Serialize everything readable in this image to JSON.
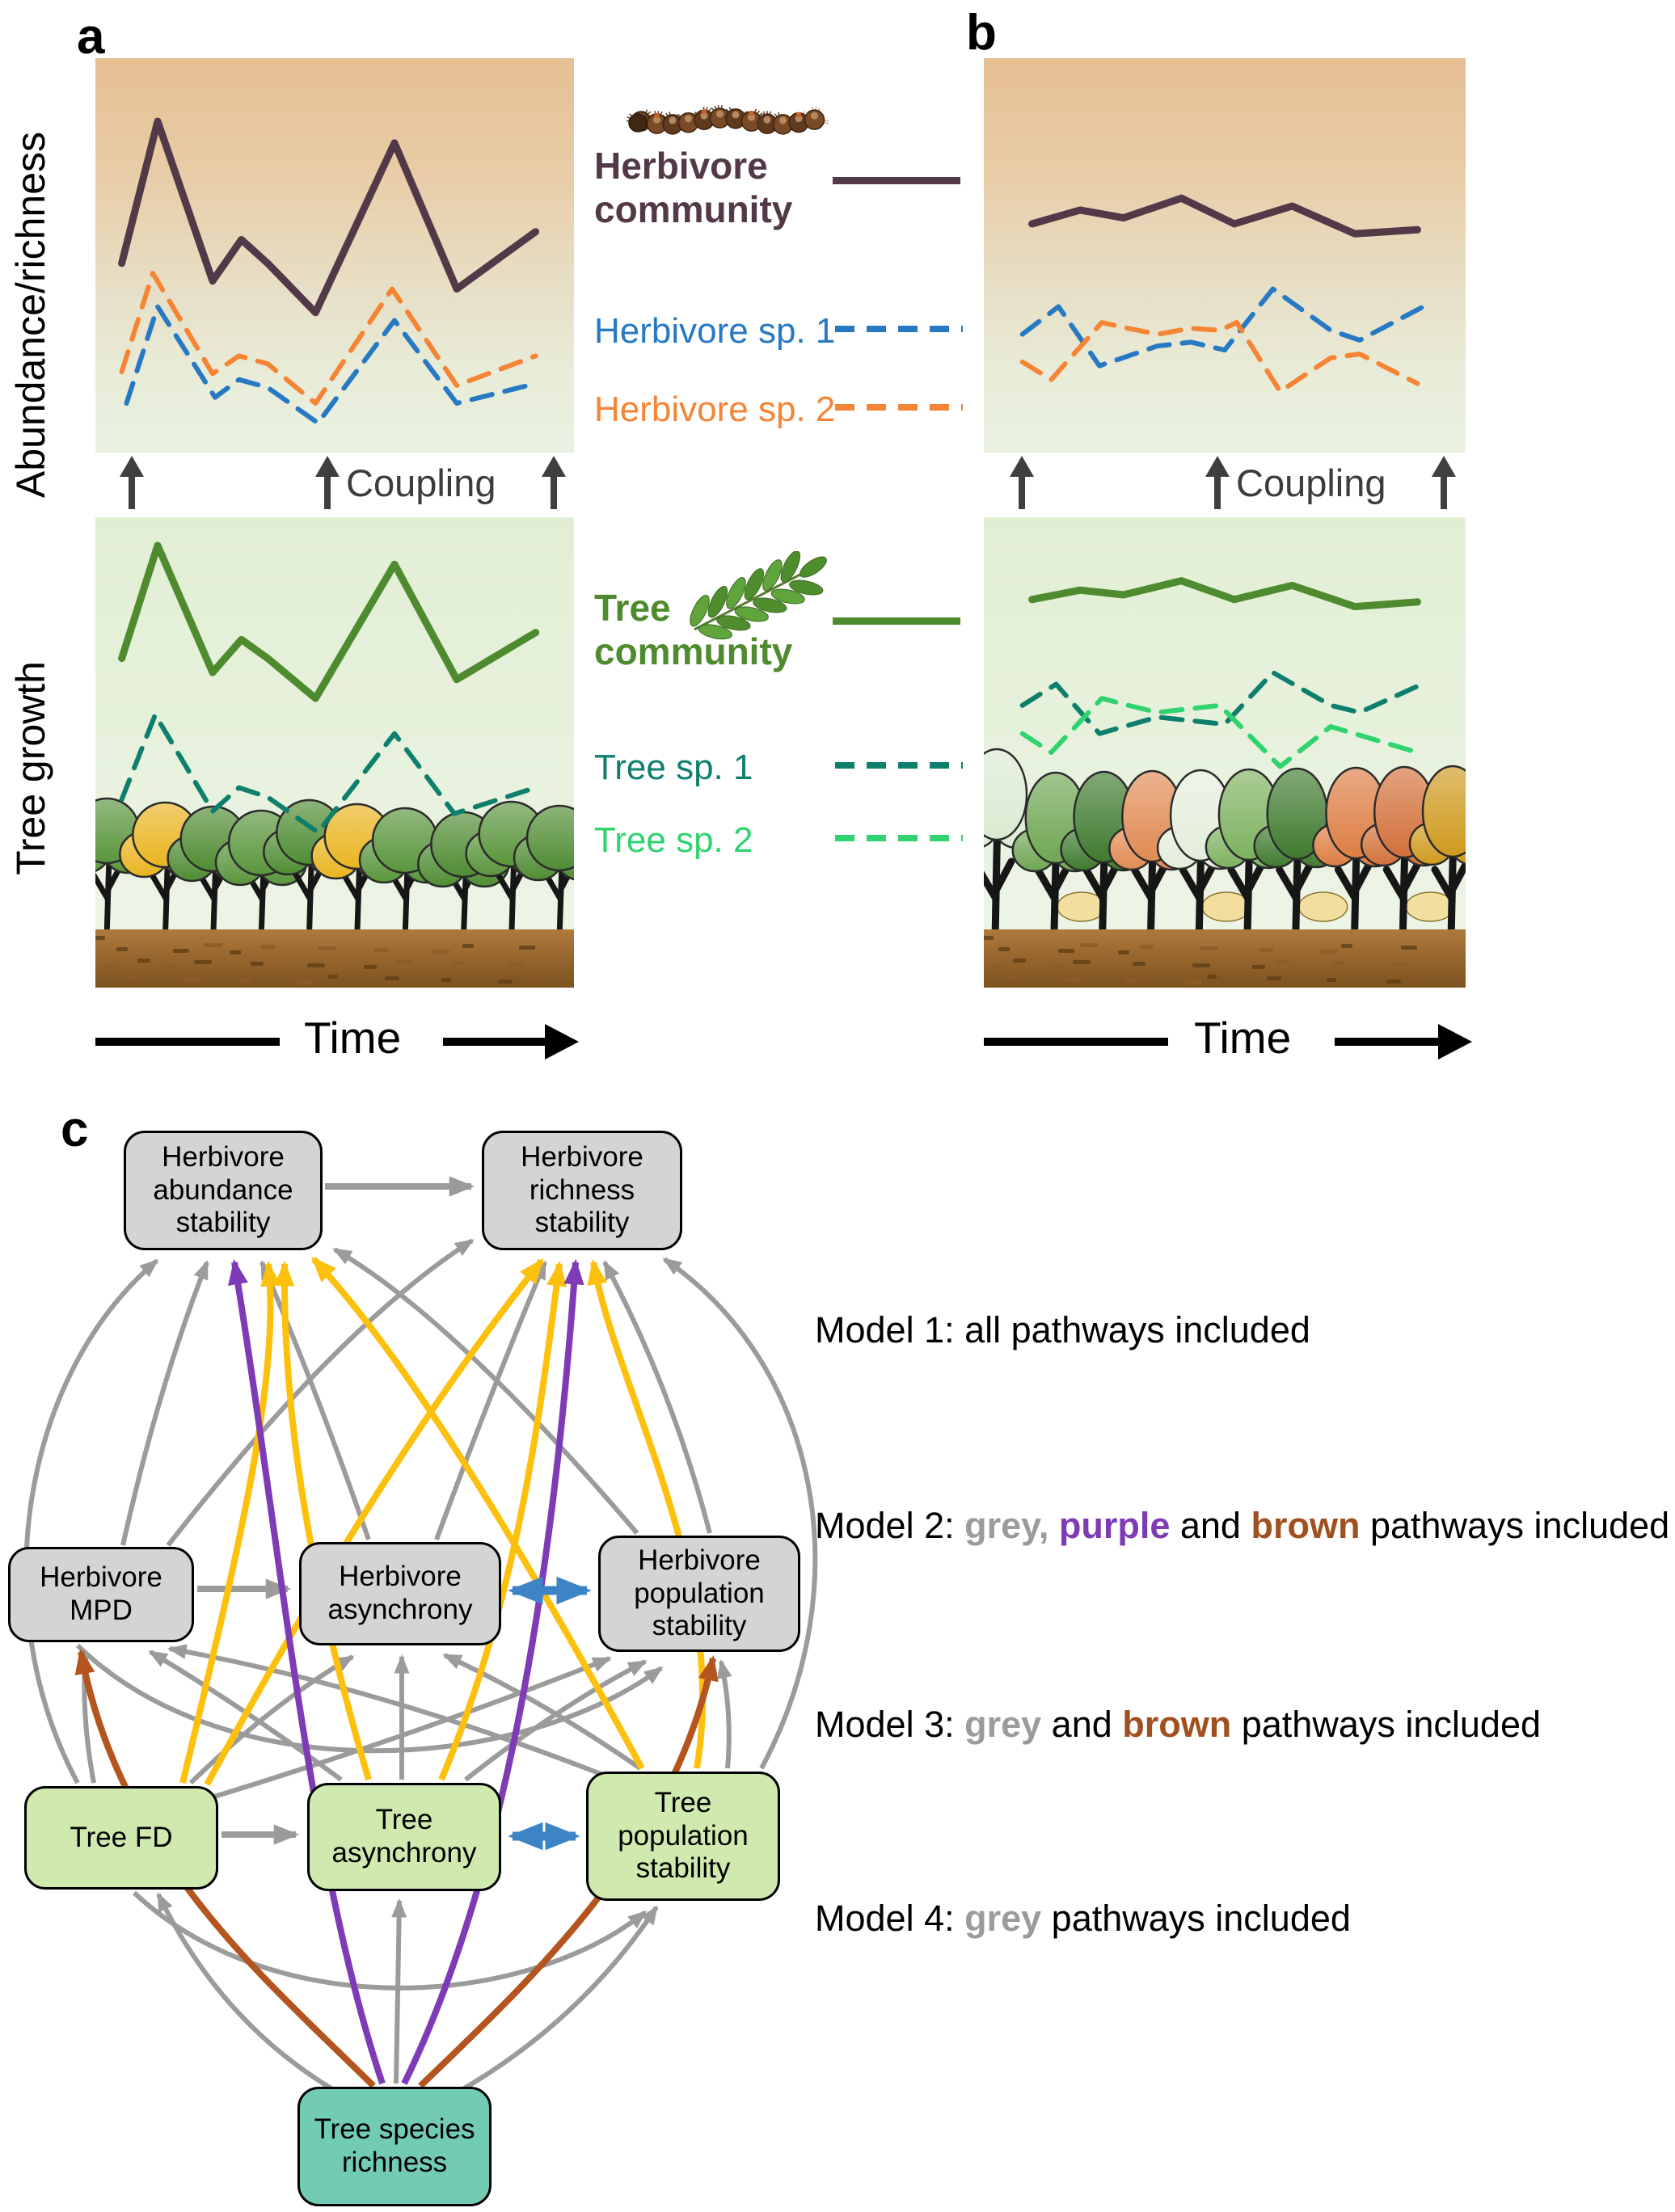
{
  "panel_a": {
    "label": "a",
    "y_axis_top": "Abundance/richness",
    "y_axis_bottom": "Tree growth",
    "coupling_label": "Coupling",
    "time_label": "Time",
    "trees": {
      "colors": [
        "#59953b",
        "#e9b41f",
        "#4f8c33",
        "#59953b",
        "#4f8c33",
        "#e9b41f",
        "#59953b",
        "#4f8c33",
        "#59953b",
        "#4f8c33"
      ],
      "understory": [],
      "shape": "round"
    }
  },
  "panel_b": {
    "label": "b",
    "coupling_label": "Coupling",
    "time_label": "Time",
    "trees": {
      "colors": [
        "#dcead2",
        "#6fa653",
        "#3f7a2e",
        "#e08a52",
        "#e4eedb",
        "#7db25f",
        "#3f7a2e",
        "#dd7d43",
        "#d2703a",
        "#cf9a1d"
      ],
      "understory": [
        1,
        4,
        6,
        8
      ],
      "shape": "tall"
    }
  },
  "legend": {
    "herbivore_community": {
      "label": "Herbivore community",
      "color": "#523947"
    },
    "herbivore_sp1": {
      "label": "Herbivore sp. 1",
      "color": "#2679c2"
    },
    "herbivore_sp2": {
      "label": "Herbivore sp. 2",
      "color": "#f58434"
    },
    "tree_community": {
      "label": "Tree community",
      "color": "#4e8a2e"
    },
    "tree_sp1": {
      "label": "Tree sp. 1",
      "color": "#0e7f6d"
    },
    "tree_sp2": {
      "label": "Tree sp. 2",
      "color": "#2fd36f"
    },
    "caterpillar_icon": "caterpillar",
    "leaf_icon": "compound-leaf"
  },
  "panel_c": {
    "label": "c",
    "boxes": [
      {
        "id": "herb_abund",
        "label": "Herbivore abundance stability",
        "fill": "#d4d4d4"
      },
      {
        "id": "herb_rich",
        "label": "Herbivore richness stability",
        "fill": "#d4d4d4"
      },
      {
        "id": "herb_mpd",
        "label": "Herbivore MPD",
        "fill": "#d4d4d4"
      },
      {
        "id": "herb_asyn",
        "label": "Herbivore asynchrony",
        "fill": "#d4d4d4"
      },
      {
        "id": "herb_pop",
        "label": "Herbivore population stability",
        "fill": "#d4d4d4"
      },
      {
        "id": "tree_fd",
        "label": "Tree FD",
        "fill": "#cfe9ae"
      },
      {
        "id": "tree_asyn",
        "label": "Tree asynchrony",
        "fill": "#cfe9ae"
      },
      {
        "id": "tree_pop",
        "label": "Tree population stability",
        "fill": "#cfe9ae"
      },
      {
        "id": "tree_richness",
        "label": "Tree species richness",
        "fill": "#72ccb4"
      }
    ],
    "path_colors": {
      "grey": "#9b9b9b",
      "purple": "#7e3bb5",
      "brown": "#b4541f",
      "yellow": "#fcc00d",
      "blue": "#3c84c6"
    },
    "edges": [
      {
        "from": "herb_abund",
        "to": "herb_rich",
        "color": "grey"
      },
      {
        "from": "herb_mpd",
        "to": "herb_asyn",
        "color": "grey"
      },
      {
        "from": "tree_fd",
        "to": "tree_asyn",
        "color": "grey"
      },
      {
        "from": "herb_mpd",
        "to": "herb_abund",
        "color": "grey"
      },
      {
        "from": "herb_mpd",
        "to": "herb_rich",
        "color": "grey"
      },
      {
        "from": "herb_asyn",
        "to": "herb_abund",
        "color": "grey"
      },
      {
        "from": "herb_asyn",
        "to": "herb_rich",
        "color": "grey"
      },
      {
        "from": "herb_pop",
        "to": "herb_abund",
        "color": "grey"
      },
      {
        "from": "herb_pop",
        "to": "herb_rich",
        "color": "grey"
      },
      {
        "from": "tree_fd",
        "to": "herb_abund",
        "color": "grey",
        "via": "outer"
      },
      {
        "from": "tree_pop",
        "to": "herb_rich",
        "color": "grey",
        "via": "outer"
      },
      {
        "from": "tree_fd",
        "to": "herb_mpd",
        "color": "grey"
      },
      {
        "from": "tree_fd",
        "to": "herb_asyn",
        "color": "grey"
      },
      {
        "from": "tree_fd",
        "to": "herb_pop",
        "color": "grey"
      },
      {
        "from": "tree_asyn",
        "to": "herb_mpd",
        "color": "grey"
      },
      {
        "from": "tree_asyn",
        "to": "herb_asyn",
        "color": "grey"
      },
      {
        "from": "tree_asyn",
        "to": "herb_pop",
        "color": "grey"
      },
      {
        "from": "tree_pop",
        "to": "herb_mpd",
        "color": "grey"
      },
      {
        "from": "tree_pop",
        "to": "herb_asyn",
        "color": "grey"
      },
      {
        "from": "tree_pop",
        "to": "herb_pop",
        "color": "grey"
      },
      {
        "from": "herb_mpd",
        "to": "herb_pop",
        "color": "grey",
        "via": "under"
      },
      {
        "from": "tree_fd",
        "to": "tree_pop",
        "color": "grey",
        "via": "under"
      },
      {
        "from": "tree_richness",
        "to": "tree_fd",
        "color": "grey"
      },
      {
        "from": "tree_richness",
        "to": "tree_asyn",
        "color": "grey"
      },
      {
        "from": "tree_richness",
        "to": "tree_pop",
        "color": "grey"
      },
      {
        "from": "tree_richness",
        "to": "herb_mpd",
        "color": "brown"
      },
      {
        "from": "tree_richness",
        "to": "herb_pop",
        "color": "brown"
      },
      {
        "from": "tree_richness",
        "to": "herb_abund",
        "color": "purple"
      },
      {
        "from": "tree_richness",
        "to": "herb_rich",
        "color": "purple"
      },
      {
        "from": "tree_fd",
        "to": "herb_abund",
        "color": "yellow"
      },
      {
        "from": "tree_fd",
        "to": "herb_rich",
        "color": "yellow"
      },
      {
        "from": "tree_asyn",
        "to": "herb_abund",
        "color": "yellow"
      },
      {
        "from": "tree_asyn",
        "to": "herb_rich",
        "color": "yellow"
      },
      {
        "from": "tree_pop",
        "to": "herb_abund",
        "color": "yellow"
      },
      {
        "from": "tree_pop",
        "to": "herb_rich",
        "color": "yellow"
      },
      {
        "from": "herb_asyn",
        "to": "herb_pop",
        "color": "blue",
        "double": true
      },
      {
        "from": "tree_asyn",
        "to": "tree_pop",
        "color": "blue",
        "double": true
      }
    ],
    "models": [
      {
        "parts": [
          {
            "text": "Model 1: ",
            "color": "#000000",
            "bold": false
          },
          {
            "text": "all pathways included",
            "color": "#000000",
            "bold": false
          }
        ]
      },
      {
        "parts": [
          {
            "text": "Model 2: ",
            "color": "#000000",
            "bold": false
          },
          {
            "text": "grey,",
            "color": "#9b9b9b",
            "bold": true
          },
          {
            "text": " ",
            "color": "#000000",
            "bold": false
          },
          {
            "text": "purple",
            "color": "#7e3bb5",
            "bold": true
          },
          {
            "text": " and ",
            "color": "#000000",
            "bold": false
          },
          {
            "text": "brown",
            "color": "#a04f1e",
            "bold": true
          },
          {
            "text": " pathways included",
            "color": "#000000",
            "bold": false
          }
        ]
      },
      {
        "parts": [
          {
            "text": "Model 3: ",
            "color": "#000000",
            "bold": false
          },
          {
            "text": "grey",
            "color": "#9b9b9b",
            "bold": true
          },
          {
            "text": " and ",
            "color": "#000000",
            "bold": false
          },
          {
            "text": "brown",
            "color": "#a04f1e",
            "bold": true
          },
          {
            "text": " pathways included",
            "color": "#000000",
            "bold": false
          }
        ]
      },
      {
        "parts": [
          {
            "text": "Model 4: ",
            "color": "#000000",
            "bold": false
          },
          {
            "text": "grey",
            "color": "#9b9b9b",
            "bold": true
          },
          {
            "text": " pathways included",
            "color": "#000000",
            "bold": false
          }
        ]
      }
    ]
  },
  "chart_data": [
    {
      "id": "a_herbivore",
      "type": "line",
      "x_axis": "Time",
      "y_axis": "Abundance/richness",
      "series": [
        {
          "name": "Herbivore community",
          "color": "#523947",
          "width": 9,
          "dash": null,
          "points": [
            [
              0.055,
              0.52
            ],
            [
              0.13,
              0.16
            ],
            [
              0.245,
              0.565
            ],
            [
              0.305,
              0.46
            ],
            [
              0.36,
              0.52
            ],
            [
              0.46,
              0.645
            ],
            [
              0.625,
              0.215
            ],
            [
              0.755,
              0.585
            ],
            [
              0.92,
              0.44
            ]
          ]
        },
        {
          "name": "Herbivore sp. 2",
          "color": "#f58434",
          "width": 6,
          "dash": "26 16",
          "points": [
            [
              0.055,
              0.795
            ],
            [
              0.12,
              0.545
            ],
            [
              0.245,
              0.8
            ],
            [
              0.3,
              0.755
            ],
            [
              0.36,
              0.775
            ],
            [
              0.46,
              0.875
            ],
            [
              0.62,
              0.585
            ],
            [
              0.755,
              0.83
            ],
            [
              0.92,
              0.755
            ]
          ]
        },
        {
          "name": "Herbivore sp. 1",
          "color": "#2679c2",
          "width": 6,
          "dash": "26 16",
          "points": [
            [
              0.065,
              0.875
            ],
            [
              0.13,
              0.63
            ],
            [
              0.25,
              0.86
            ],
            [
              0.3,
              0.815
            ],
            [
              0.36,
              0.835
            ],
            [
              0.465,
              0.925
            ],
            [
              0.625,
              0.665
            ],
            [
              0.755,
              0.875
            ],
            [
              0.92,
              0.825
            ]
          ]
        }
      ]
    },
    {
      "id": "a_tree",
      "type": "line",
      "x_axis": "Time",
      "y_axis": "Tree growth",
      "series": [
        {
          "name": "Tree community",
          "color": "#4e8a2e",
          "width": 9,
          "dash": null,
          "points": [
            [
              0.055,
              0.3
            ],
            [
              0.13,
              0.06
            ],
            [
              0.245,
              0.33
            ],
            [
              0.305,
              0.26
            ],
            [
              0.36,
              0.3
            ],
            [
              0.46,
              0.385
            ],
            [
              0.625,
              0.1
            ],
            [
              0.755,
              0.345
            ],
            [
              0.92,
              0.245
            ]
          ]
        },
        {
          "name": "Tree sp. 1",
          "color": "#0e7f6d",
          "width": 6,
          "dash": "26 16",
          "points": [
            [
              0.055,
              0.6
            ],
            [
              0.125,
              0.42
            ],
            [
              0.245,
              0.625
            ],
            [
              0.3,
              0.575
            ],
            [
              0.36,
              0.595
            ],
            [
              0.465,
              0.67
            ],
            [
              0.625,
              0.46
            ],
            [
              0.75,
              0.63
            ],
            [
              0.92,
              0.575
            ]
          ]
        }
      ]
    },
    {
      "id": "b_herbivore",
      "type": "line",
      "x_axis": "Time",
      "y_axis": "Abundance/richness",
      "series": [
        {
          "name": "Herbivore community",
          "color": "#523947",
          "width": 9,
          "dash": null,
          "points": [
            [
              0.1,
              0.42
            ],
            [
              0.2,
              0.385
            ],
            [
              0.29,
              0.405
            ],
            [
              0.41,
              0.355
            ],
            [
              0.52,
              0.42
            ],
            [
              0.64,
              0.375
            ],
            [
              0.77,
              0.445
            ],
            [
              0.9,
              0.435
            ]
          ]
        },
        {
          "name": "Herbivore sp. 1",
          "color": "#2679c2",
          "width": 6,
          "dash": "26 16",
          "points": [
            [
              0.08,
              0.7
            ],
            [
              0.155,
              0.63
            ],
            [
              0.24,
              0.78
            ],
            [
              0.36,
              0.73
            ],
            [
              0.43,
              0.72
            ],
            [
              0.5,
              0.74
            ],
            [
              0.6,
              0.585
            ],
            [
              0.72,
              0.69
            ],
            [
              0.78,
              0.715
            ],
            [
              0.92,
              0.625
            ]
          ]
        },
        {
          "name": "Herbivore sp. 2",
          "color": "#f58434",
          "width": 6,
          "dash": "26 16",
          "points": [
            [
              0.08,
              0.77
            ],
            [
              0.14,
              0.815
            ],
            [
              0.245,
              0.67
            ],
            [
              0.3,
              0.685
            ],
            [
              0.36,
              0.7
            ],
            [
              0.43,
              0.685
            ],
            [
              0.49,
              0.69
            ],
            [
              0.525,
              0.67
            ],
            [
              0.615,
              0.845
            ],
            [
              0.72,
              0.76
            ],
            [
              0.78,
              0.75
            ],
            [
              0.9,
              0.825
            ]
          ]
        }
      ]
    },
    {
      "id": "b_tree",
      "type": "line",
      "x_axis": "Time",
      "y_axis": "Tree growth",
      "series": [
        {
          "name": "Tree community",
          "color": "#4e8a2e",
          "width": 9,
          "dash": null,
          "points": [
            [
              0.1,
              0.175
            ],
            [
              0.2,
              0.155
            ],
            [
              0.29,
              0.165
            ],
            [
              0.41,
              0.135
            ],
            [
              0.52,
              0.175
            ],
            [
              0.64,
              0.145
            ],
            [
              0.77,
              0.19
            ],
            [
              0.9,
              0.18
            ]
          ]
        },
        {
          "name": "Tree sp. 1",
          "color": "#0e7f6d",
          "width": 6,
          "dash": "26 16",
          "points": [
            [
              0.08,
              0.4
            ],
            [
              0.15,
              0.355
            ],
            [
              0.24,
              0.46
            ],
            [
              0.36,
              0.425
            ],
            [
              0.5,
              0.44
            ],
            [
              0.6,
              0.33
            ],
            [
              0.72,
              0.4
            ],
            [
              0.78,
              0.415
            ],
            [
              0.92,
              0.35
            ]
          ]
        },
        {
          "name": "Tree sp. 2",
          "color": "#2fd36f",
          "width": 6,
          "dash": "26 16",
          "points": [
            [
              0.08,
              0.46
            ],
            [
              0.14,
              0.5
            ],
            [
              0.245,
              0.385
            ],
            [
              0.3,
              0.4
            ],
            [
              0.36,
              0.415
            ],
            [
              0.49,
              0.4
            ],
            [
              0.615,
              0.53
            ],
            [
              0.72,
              0.445
            ],
            [
              0.9,
              0.5
            ]
          ]
        }
      ]
    }
  ]
}
